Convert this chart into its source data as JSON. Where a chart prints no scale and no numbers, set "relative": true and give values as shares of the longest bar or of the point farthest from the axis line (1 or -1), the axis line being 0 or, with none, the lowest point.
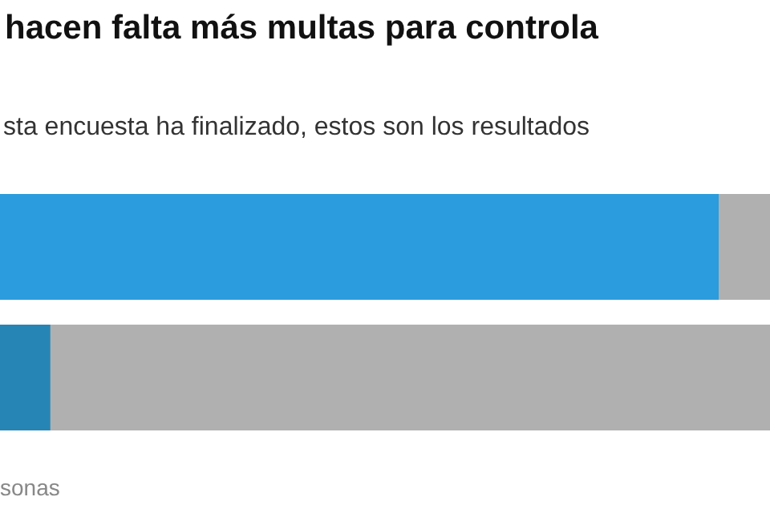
{
  "chart_data": {
    "type": "bar",
    "orientation": "horizontal",
    "relative": true,
    "title": "hacen falta más multas para controla",
    "subtitle": "sta encuesta ha finalizado, estos son los resultados",
    "categories": [
      null,
      null
    ],
    "values": [
      1,
      0.07
    ],
    "colors": [
      "#2b9cdd",
      "#2785b5"
    ],
    "annotations": [
      "sonas"
    ]
  }
}
